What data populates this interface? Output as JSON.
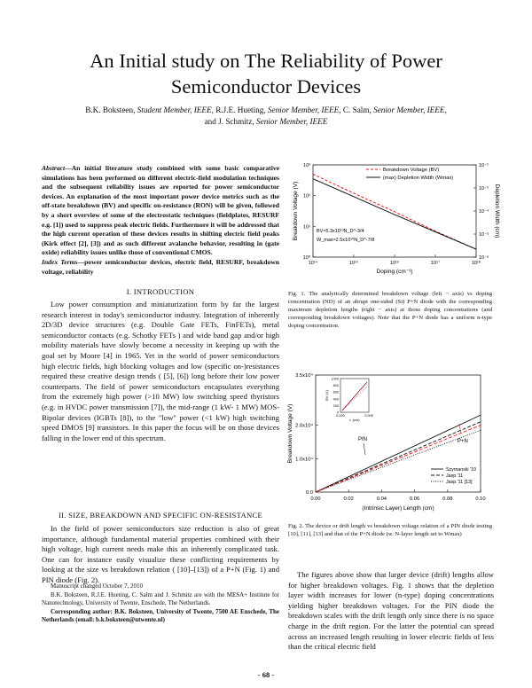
{
  "title": "An Initial study on The Reliability of Power Semiconductor Devices",
  "authors": {
    "line1": [
      {
        "name": "B.K. Boksteen, ",
        "role": "Student Member, IEEE"
      },
      {
        "name": ", R.J.E. Hueting, ",
        "role": "Senior Member, IEEE"
      },
      {
        "name": ", C. Salm, ",
        "role": "Senior Member, IEEE"
      },
      {
        "name": ",",
        "role": ""
      }
    ],
    "line2_name": "and J. Schmitz, ",
    "line2_role": "Senior Member, IEEE"
  },
  "abstract": {
    "label": "Abstract",
    "text": "—An initial literature study combined with some basic comparative simulations has been performed on different electric-field modulation techniques and the subsequent reliability issues are reported for power semiconductor devices. An explanation of the most important power device metrics such as the off-state breakdown (BV) and specific on-resistance (RON) will be given, followed by a short overview of some of the electrostatic techniques (fieldplates, RESURF e.g. [1]) used to suppress peak electric fields. Furthermore it will be addressed that the high current operation of these devices results in shifting electric field peaks (Kirk effect [2], [3]) and as such different avalanche behavior, resulting in (gate oxide) reliability issues unlike those of conventional CMOS."
  },
  "index_terms": {
    "label": "Index Terms",
    "text": "—power semiconductor devices, electric field, RESURF, breakdown voltage, reliability"
  },
  "section1": {
    "heading": "I. INTRODUCTION",
    "text": "Low power consumption and miniaturization form by far the largest research interest in today's semiconductor industry. Integration of inherently 2D/3D device structures (e.g. Double Gate FETs, FinFETs), metal semiconductor contacts (e.g. Schotky FETs ) and wide band gap and/or high mobility materials have slowly become a necessity in keeping up with the goal set by Moore [4] in 1965. Yet in the world of power semiconductors high electric fields, high blocking voltages and low (specific on-)resistances required these creative design trends ( [5], [6]) long before their low power counterparts. The field of power semiconductors encapsulates everything from the extremely high power (>10 MW) low switching speed thyristors (e.g. in HVDC power transmission [7]), the mid-range (1 kW- 1 MW) MOS- Bipolar devices (IGBTs [8]), to the \"low\" power (<1 kW) high switching speed DMOS [9] transistors. In this paper the focus will be on those devices falling in the lower end of this spectrum."
  },
  "section2": {
    "heading": "II. SIZE, BREAKDOWN AND SPECIFIC ON-RESISTANCE",
    "text": "In the field of power semiconductors size reduction is also of great importance, although fundamental material properties combined with their high voltage, high current needs make this an inherently complicated task. One can for instance easily visualize these conflicting requirements by looking at the size vs breakdown relation ( [10]–[13]) of a P+N (Fig. 1) and PIN diode (Fig. 2)."
  },
  "footnotes": {
    "manuscript": "Manuscript changed October 7, 2010",
    "affiliation": "B.K. Boksteen, R.J.E. Hueting, C. Salm and J. Schmitz are with the MESA+ Institute for Nanotechnology, University of Twente, Enschede, The Netherlands.",
    "correspondence": "Corresponding author: B.K. Boksteen, University of Twente, 7500 AE Enschede, The Netherlands (email: b.k.boksteen@utwente.nl)"
  },
  "fig1_caption": "Fig. 1. The analytically determined breakdown voltage (left − axis) vs doping concentration (ND) of an abrupt one-sided (Si) P+N diode with the corresponding maximum depletion lengths (right − axis) at those doping concentrations (and corresponding breakdown voltages). Note that the P+N diode has a uniform n-type doping concentration.",
  "fig2_caption": "Fig. 2. The device or drift length vs breakdown voltage relation of a PIN diode testing [10], [11], [13] and that of the P+N diode (w. N-layer length set to Wmax)",
  "section2_cont": "The figures above show that larger device (drift) lengths allow for higher breakdown voltages. Fig. 1 shows that the depletion layer width increases for lower (n-type) doping concentrations yielding higher breakdown voltages. For the PIN diode the breakdown scales with the drift length only since there is no space charge in the drift region. For the latter the potential can spread across an increased length resulting in lower electric fields of less than the critical electric field",
  "page_number": "- 68 -",
  "chart_data": [
    {
      "type": "line",
      "xlabel": "Doping (cm⁻³)",
      "ylabel": "Breakdown Voltage (V)",
      "y2label": "Depletion Width (cm)",
      "xscale": "log",
      "yscale": "log",
      "y2scale": "log",
      "xlim": [
        100000000000000.0,
        1e+18
      ],
      "ylim": [
        1,
        1000
      ],
      "y2lim": [
        1e-06,
        0.01
      ],
      "x_ticks": [
        "10¹⁴",
        "10¹⁵",
        "10¹⁶",
        "10¹⁷",
        "10¹⁸"
      ],
      "y_ticks": [
        "10⁰",
        "10¹",
        "10²",
        "10³"
      ],
      "y2_ticks": [
        "10⁻⁶",
        "10⁻⁵",
        "10⁻⁴",
        "10⁻³",
        "10⁻²"
      ],
      "series": [
        {
          "name": "Breakdown Voltage (BV)",
          "axis": "left",
          "color": "#ee1111",
          "style": "dashed",
          "x": [
            100000000000000.0,
            1000000000000000.0,
            1e+16,
            1e+17,
            1e+18
          ],
          "y": [
            500,
            120,
            30,
            7,
            1.8
          ]
        },
        {
          "name": "(max) Depletion Width (Wmax)",
          "axis": "right",
          "color": "#111111",
          "style": "solid",
          "x": [
            100000000000000.0,
            1000000000000000.0,
            1e+16,
            1e+17,
            1e+18
          ],
          "y": [
            0.0025,
            0.00042,
            7e-05,
            1.25e-05,
            2.2e-06
          ]
        }
      ],
      "annotations": [
        "BV≈5.3x10¹³N_D^-3/4",
        "W_max≈2.5x10¹⁰N_D^-7/8"
      ],
      "legend": "top-right"
    },
    {
      "type": "line",
      "xlabel": "(Intrinsic Layer) Length (cm)",
      "ylabel": "Breakdown Voltage (V)",
      "xlim": [
        0,
        0.1
      ],
      "ylim": [
        0,
        35000
      ],
      "x_ticks": [
        "0.00",
        "0.02",
        "0.04",
        "0.06",
        "0.08",
        "0.10"
      ],
      "y_ticks": [
        "0.0",
        "1.0x10⁴",
        "2.0x10⁴",
        "3.5x10⁴"
      ],
      "series": [
        {
          "name": "Szymanski '10",
          "style": "solid",
          "color": "#111111",
          "x": [
            0,
            0.1
          ],
          "y": [
            0,
            23000
          ]
        },
        {
          "name": "Jasp.'11",
          "style": "dashed",
          "color": "#111111",
          "x": [
            0,
            0.1
          ],
          "y": [
            0,
            21000
          ]
        },
        {
          "name": "Jasp.'11 [13]",
          "style": "dotted",
          "color": "#111111",
          "x": [
            0,
            0.1
          ],
          "y": [
            0,
            18500
          ]
        },
        {
          "name": "P+N",
          "style": "dashed",
          "color": "#ee1111",
          "x": [
            0,
            0.1
          ],
          "y": [
            0,
            20000
          ]
        }
      ],
      "labels": [
        "PIN",
        "P+N"
      ],
      "inset_ticks_y": [
        "1000",
        "800",
        "600",
        "400",
        "200",
        "0"
      ],
      "inset_ticks_x": [
        "0.000",
        "0.005"
      ],
      "inset_xlabel": "L (cm)",
      "inset_ylabel": "BV (V)",
      "legend": "bottom-right"
    }
  ]
}
